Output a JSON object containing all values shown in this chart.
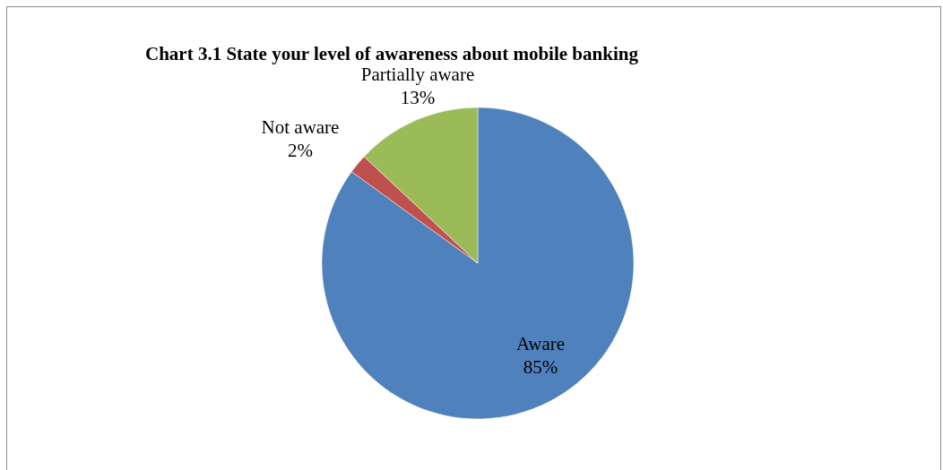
{
  "chart_data": {
    "type": "pie",
    "title": "Chart 3.1 State your level of awareness about mobile banking",
    "categories": [
      "Aware",
      "Not aware",
      "Partially aware"
    ],
    "values": [
      85,
      2,
      13
    ],
    "colors": [
      "#4f81bd",
      "#c0504d",
      "#9bbb59"
    ],
    "value_labels": [
      "85%",
      "2%",
      "13%"
    ],
    "legend": false
  }
}
